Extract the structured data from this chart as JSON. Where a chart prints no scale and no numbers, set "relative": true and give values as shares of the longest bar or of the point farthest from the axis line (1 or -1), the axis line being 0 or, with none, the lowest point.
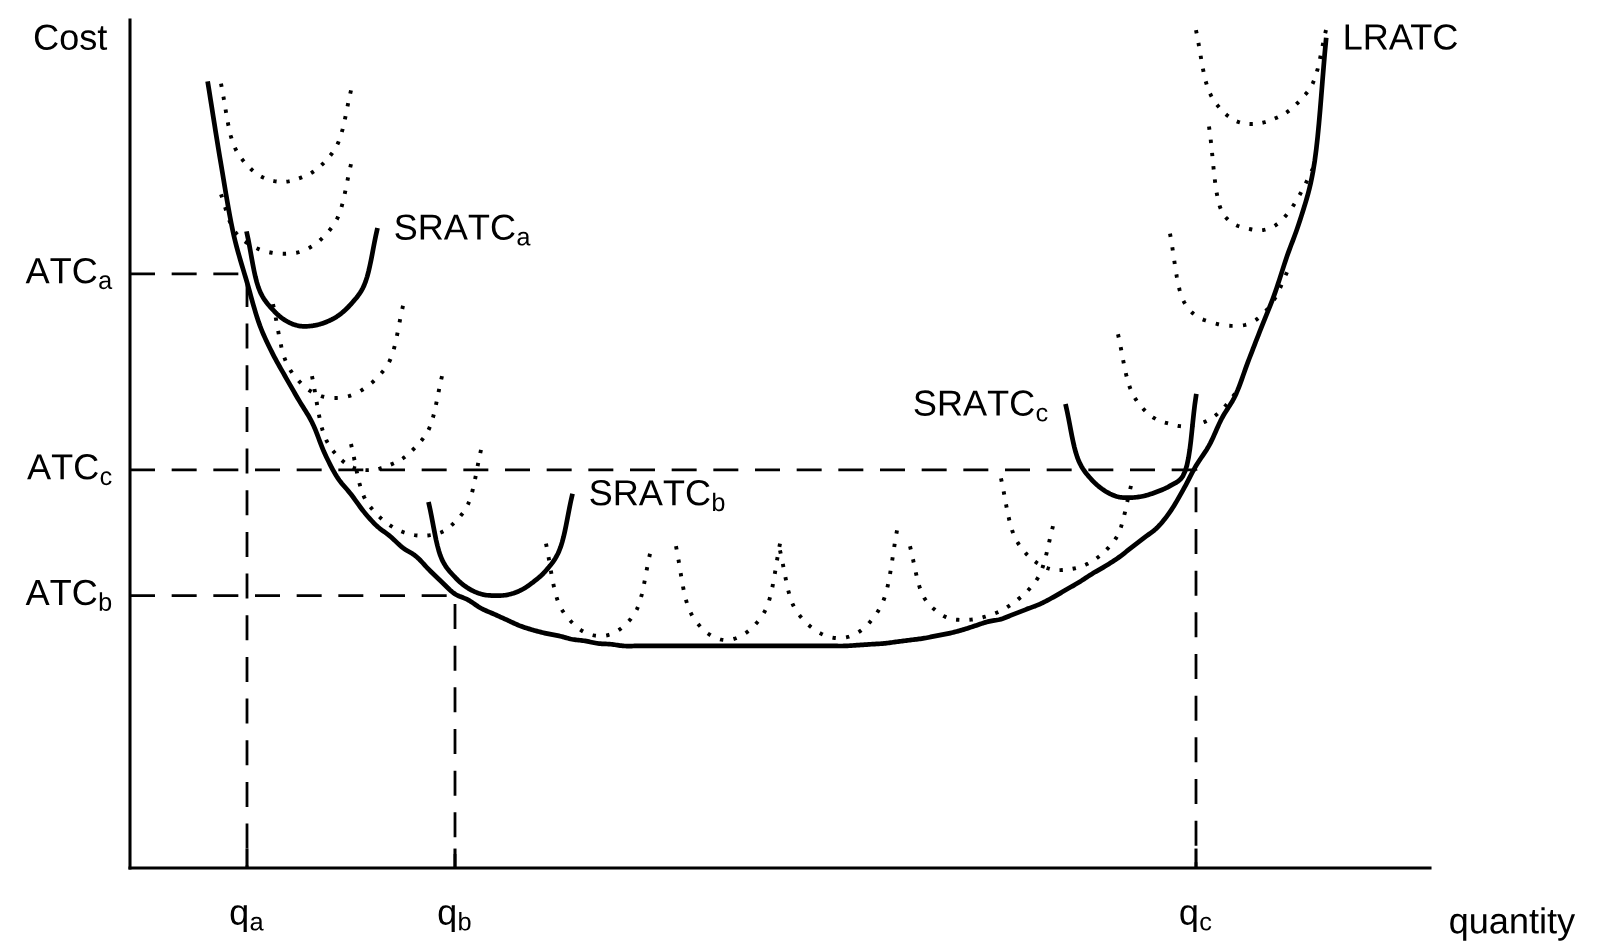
{
  "chart_data": {
    "type": "line",
    "relative": true,
    "xlabel": "quantity",
    "ylabel": "Cost",
    "categories": [
      null,
      null,
      null,
      null,
      null,
      null,
      null,
      null,
      null,
      "q$_{a}$",
      null,
      null,
      null,
      null,
      null,
      null,
      null,
      null,
      null,
      null,
      null,
      null,
      null,
      null,
      null,
      "q$_{b}$",
      null,
      null,
      null,
      null,
      null,
      null,
      null,
      null,
      null,
      null,
      null,
      null,
      null,
      null,
      null,
      null,
      null,
      null,
      null,
      null,
      null,
      null,
      null,
      null,
      null,
      null,
      null,
      null,
      null,
      null,
      null,
      null,
      null,
      null,
      null,
      null,
      null,
      null,
      null,
      null,
      null,
      null,
      null,
      null,
      null,
      null,
      null,
      null,
      null,
      null,
      null,
      null,
      null,
      null,
      null,
      null,
      "q$_{c}$",
      null,
      null,
      null,
      null,
      null,
      null,
      null,
      null,
      null,
      null,
      null,
      null,
      null,
      null,
      null,
      null,
      null,
      null
    ],
    "series": [
      {
        "name": "LRATC",
        "color": "#000000",
        "line_style": "solid",
        "values": [
          null,
          null,
          null,
          null,
          null,
          null,
          0.936,
          0.84,
          0.754,
          0.699,
          0.647,
          0.613,
          0.585,
          0.558,
          0.532,
          0.494,
          0.465,
          0.446,
          0.425,
          0.408,
          0.396,
          0.382,
          0.372,
          0.356,
          0.341,
          0.327,
          0.32,
          0.31,
          0.303,
          0.296,
          0.289,
          0.284,
          0.28,
          0.277,
          0.273,
          0.271,
          0.268,
          0.267,
          0.265,
          0.265,
          0.265,
          0.265,
          0.265,
          0.265,
          0.265,
          0.265,
          0.265,
          0.265,
          0.265,
          0.265,
          0.265,
          0.265,
          0.265,
          0.265,
          0.265,
          0.265,
          0.266,
          0.267,
          0.268,
          0.27,
          0.272,
          0.274,
          0.277,
          0.28,
          0.284,
          0.289,
          0.294,
          0.297,
          0.303,
          0.309,
          0.315,
          0.323,
          0.332,
          0.341,
          0.351,
          0.36,
          0.37,
          0.382,
          0.394,
          0.406,
          0.425,
          0.451,
          0.48,
          0.504,
          0.537,
          0.563,
          0.604,
          0.644,
          0.683,
          0.73,
          0.773,
          0.831,
          0.988,
          null,
          null,
          null,
          null,
          null,
          null,
          null,
          null
        ]
      },
      {
        "name": "SRATC$_{a}$",
        "color": "#000000",
        "line_style": "solid",
        "values": [
          null,
          null,
          null,
          null,
          null,
          null,
          null,
          null,
          null,
          0.757,
          0.688,
          0.666,
          0.653,
          0.647,
          0.647,
          0.651,
          0.659,
          0.673,
          0.695,
          0.761,
          null,
          null,
          null,
          null,
          null,
          null,
          null,
          null,
          null,
          null,
          null,
          null,
          null,
          null,
          null,
          null,
          null,
          null,
          null,
          null,
          null,
          null,
          null,
          null,
          null,
          null,
          null,
          null,
          null,
          null,
          null,
          null,
          null,
          null,
          null,
          null,
          null,
          null,
          null,
          null,
          null,
          null,
          null,
          null,
          null,
          null,
          null,
          null,
          null,
          null,
          null,
          null,
          null,
          null,
          null,
          null,
          null,
          null,
          null,
          null,
          null,
          null,
          null,
          null,
          null,
          null,
          null,
          null,
          null,
          null,
          null,
          null,
          null,
          null,
          null,
          null,
          null,
          null,
          null,
          null,
          null
        ]
      },
      {
        "name": "SRATC$_{b}$",
        "color": "#000000",
        "line_style": "solid",
        "values": [
          null,
          null,
          null,
          null,
          null,
          null,
          null,
          null,
          null,
          null,
          null,
          null,
          null,
          null,
          null,
          null,
          null,
          null,
          null,
          null,
          null,
          null,
          null,
          0.434,
          0.368,
          0.347,
          0.334,
          0.327,
          0.325,
          0.326,
          0.331,
          0.341,
          0.355,
          0.378,
          0.444,
          null,
          null,
          null,
          null,
          null,
          null,
          null,
          null,
          null,
          null,
          null,
          null,
          null,
          null,
          null,
          null,
          null,
          null,
          null,
          null,
          null,
          null,
          null,
          null,
          null,
          null,
          null,
          null,
          null,
          null,
          null,
          null,
          null,
          null,
          null,
          null,
          null,
          null,
          null,
          null,
          null,
          null,
          null,
          null,
          null,
          null,
          null,
          null,
          null,
          null,
          null,
          null,
          null,
          null,
          null,
          null,
          null,
          null,
          null,
          null,
          null,
          null,
          null,
          null,
          null,
          null
        ]
      },
      {
        "name": "SRATC$_{c}$",
        "color": "#000000",
        "line_style": "solid",
        "values": [
          null,
          null,
          null,
          null,
          null,
          null,
          null,
          null,
          null,
          null,
          null,
          null,
          null,
          null,
          null,
          null,
          null,
          null,
          null,
          null,
          null,
          null,
          null,
          null,
          null,
          null,
          null,
          null,
          null,
          null,
          null,
          null,
          null,
          null,
          null,
          null,
          null,
          null,
          null,
          null,
          null,
          null,
          null,
          null,
          null,
          null,
          null,
          null,
          null,
          null,
          null,
          null,
          null,
          null,
          null,
          null,
          null,
          null,
          null,
          null,
          null,
          null,
          null,
          null,
          null,
          null,
          null,
          null,
          null,
          null,
          null,
          null,
          0.551,
          0.485,
          0.463,
          0.45,
          0.443,
          0.442,
          0.444,
          0.449,
          0.456,
          0.468,
          0.563,
          null,
          null,
          null,
          null,
          null,
          null,
          null,
          null,
          null,
          null,
          null,
          null,
          null,
          null,
          null,
          null,
          null,
          null
        ]
      },
      {
        "color": "#000000",
        "line_style": "dotted",
        "values": [
          null,
          null,
          null,
          null,
          null,
          null,
          null,
          0.936,
          0.862,
          0.839,
          0.826,
          0.82,
          0.819,
          0.823,
          0.83,
          0.843,
          0.865,
          0.928,
          null,
          null,
          null,
          null,
          null,
          null,
          null,
          null,
          null,
          null,
          null,
          null,
          null,
          null,
          null,
          null,
          null,
          null,
          null,
          null,
          null,
          null,
          null,
          null,
          null,
          null,
          null,
          null,
          null,
          null,
          null,
          null,
          null,
          null,
          null,
          null,
          null,
          null,
          null,
          null,
          null,
          null,
          null,
          null,
          null,
          null,
          null,
          null,
          null,
          null,
          null,
          null,
          null,
          null,
          null,
          null,
          null,
          null,
          null,
          null,
          null,
          null,
          null,
          null,
          null,
          null,
          null,
          null,
          null,
          null,
          null,
          null,
          null,
          null,
          null,
          null,
          null,
          null,
          null,
          null,
          null,
          null,
          null
        ]
      },
      {
        "color": "#000000",
        "line_style": "dotted",
        "values": [
          null,
          null,
          null,
          null,
          null,
          null,
          null,
          0.804,
          0.761,
          0.746,
          0.738,
          0.734,
          0.733,
          0.735,
          0.742,
          0.755,
          0.777,
          0.84,
          null,
          null,
          null,
          null,
          null,
          null,
          null,
          null,
          null,
          null,
          null,
          null,
          null,
          null,
          null,
          null,
          null,
          null,
          null,
          null,
          null,
          null,
          null,
          null,
          null,
          null,
          null,
          null,
          null,
          null,
          null,
          null,
          null,
          null,
          null,
          null,
          null,
          null,
          null,
          null,
          null,
          null,
          null,
          null,
          null,
          null,
          null,
          null,
          null,
          null,
          null,
          null,
          null,
          null,
          null,
          null,
          null,
          null,
          null,
          null,
          null,
          null,
          null,
          null,
          null,
          null,
          null,
          null,
          null,
          null,
          null,
          null,
          null,
          null,
          null,
          null,
          null,
          null,
          null,
          null,
          null,
          null,
          null
        ]
      },
      {
        "color": "#000000",
        "line_style": "dotted",
        "values": [
          null,
          null,
          null,
          null,
          null,
          null,
          null,
          null,
          null,
          null,
          null,
          0.673,
          0.604,
          0.581,
          0.568,
          0.562,
          0.561,
          0.564,
          0.572,
          0.585,
          0.606,
          0.671,
          null,
          null,
          null,
          null,
          null,
          null,
          null,
          null,
          null,
          null,
          null,
          null,
          null,
          null,
          null,
          null,
          null,
          null,
          null,
          null,
          null,
          null,
          null,
          null,
          null,
          null,
          null,
          null,
          null,
          null,
          null,
          null,
          null,
          null,
          null,
          null,
          null,
          null,
          null,
          null,
          null,
          null,
          null,
          null,
          null,
          null,
          null,
          null,
          null,
          null,
          null,
          null,
          null,
          null,
          null,
          null,
          null,
          null,
          null,
          null,
          null,
          null,
          null,
          null,
          null,
          null,
          null,
          null,
          null,
          null,
          null,
          null,
          null,
          null,
          null,
          null,
          null,
          null,
          null
        ]
      },
      {
        "color": "#000000",
        "line_style": "dotted",
        "values": [
          null,
          null,
          null,
          null,
          null,
          null,
          null,
          null,
          null,
          null,
          null,
          null,
          null,
          null,
          0.587,
          0.514,
          0.491,
          0.479,
          0.475,
          0.476,
          0.481,
          0.489,
          0.503,
          0.524,
          0.587,
          null,
          null,
          null,
          null,
          null,
          null,
          null,
          null,
          null,
          null,
          null,
          null,
          null,
          null,
          null,
          null,
          null,
          null,
          null,
          null,
          null,
          null,
          null,
          null,
          null,
          null,
          null,
          null,
          null,
          null,
          null,
          null,
          null,
          null,
          null,
          null,
          null,
          null,
          null,
          null,
          null,
          null,
          null,
          null,
          null,
          null,
          null,
          null,
          null,
          null,
          null,
          null,
          null,
          null,
          null,
          null,
          null,
          null,
          null,
          null,
          null,
          null,
          null,
          null,
          null,
          null,
          null,
          null,
          null,
          null,
          null,
          null,
          null,
          null,
          null,
          null
        ]
      },
      {
        "color": "#000000",
        "line_style": "dotted",
        "values": [
          null,
          null,
          null,
          null,
          null,
          null,
          null,
          null,
          null,
          null,
          null,
          null,
          null,
          null,
          null,
          null,
          null,
          0.506,
          0.443,
          0.422,
          0.409,
          0.401,
          0.397,
          0.397,
          0.401,
          0.413,
          0.434,
          0.499,
          null,
          null,
          null,
          null,
          null,
          null,
          null,
          null,
          null,
          null,
          null,
          null,
          null,
          null,
          null,
          null,
          null,
          null,
          null,
          null,
          null,
          null,
          null,
          null,
          null,
          null,
          null,
          null,
          null,
          null,
          null,
          null,
          null,
          null,
          null,
          null,
          null,
          null,
          null,
          null,
          null,
          null,
          null,
          null,
          null,
          null,
          null,
          null,
          null,
          null,
          null,
          null,
          null,
          null,
          null,
          null,
          null,
          null,
          null,
          null,
          null,
          null,
          null,
          null,
          null,
          null,
          null,
          null,
          null,
          null,
          null,
          null,
          null
        ]
      },
      {
        "color": "#000000",
        "line_style": "dotted",
        "values": [
          null,
          null,
          null,
          null,
          null,
          null,
          null,
          null,
          null,
          null,
          null,
          null,
          null,
          null,
          null,
          null,
          null,
          null,
          null,
          null,
          null,
          null,
          null,
          null,
          null,
          null,
          null,
          null,
          null,
          null,
          null,
          null,
          0.387,
          0.315,
          0.293,
          0.281,
          0.277,
          0.279,
          0.289,
          0.309,
          0.375,
          null,
          null,
          null,
          null,
          null,
          null,
          null,
          null,
          null,
          null,
          null,
          null,
          null,
          null,
          null,
          null,
          null,
          null,
          null,
          null,
          null,
          null,
          null,
          null,
          null,
          null,
          null,
          null,
          null,
          null,
          null,
          null,
          null,
          null,
          null,
          null,
          null,
          null,
          null,
          null,
          null,
          null,
          null,
          null,
          null,
          null,
          null,
          null,
          null,
          null,
          null,
          null,
          null,
          null,
          null,
          null,
          null,
          null,
          null,
          null
        ]
      },
      {
        "color": "#000000",
        "line_style": "dotted",
        "values": [
          null,
          null,
          null,
          null,
          null,
          null,
          null,
          null,
          null,
          null,
          null,
          null,
          null,
          null,
          null,
          null,
          null,
          null,
          null,
          null,
          null,
          null,
          null,
          null,
          null,
          null,
          null,
          null,
          null,
          null,
          null,
          null,
          null,
          null,
          null,
          null,
          null,
          null,
          null,
          null,
          null,
          null,
          0.384,
          0.309,
          0.286,
          0.275,
          0.272,
          0.277,
          0.289,
          0.312,
          0.387,
          null,
          null,
          null,
          null,
          null,
          null,
          null,
          null,
          null,
          null,
          null,
          null,
          null,
          null,
          null,
          null,
          null,
          null,
          null,
          null,
          null,
          null,
          null,
          null,
          null,
          null,
          null,
          null,
          null,
          null,
          null,
          null,
          null,
          null,
          null,
          null,
          null,
          null,
          null,
          null,
          null,
          null,
          null,
          null,
          null,
          null,
          null,
          null,
          null,
          null
        ]
      },
      {
        "color": "#000000",
        "line_style": "dotted",
        "values": [
          null,
          null,
          null,
          null,
          null,
          null,
          null,
          null,
          null,
          null,
          null,
          null,
          null,
          null,
          null,
          null,
          null,
          null,
          null,
          null,
          null,
          null,
          null,
          null,
          null,
          null,
          null,
          null,
          null,
          null,
          null,
          null,
          null,
          null,
          null,
          null,
          null,
          null,
          null,
          null,
          null,
          null,
          null,
          null,
          null,
          null,
          null,
          null,
          null,
          null,
          0.379,
          0.314,
          0.293,
          0.281,
          0.275,
          0.275,
          0.281,
          0.295,
          0.321,
          0.403,
          null,
          null,
          null,
          null,
          null,
          null,
          null,
          null,
          null,
          null,
          null,
          null,
          null,
          null,
          null,
          null,
          null,
          null,
          null,
          null,
          null,
          null,
          null,
          null,
          null,
          null,
          null,
          null,
          null,
          null,
          null,
          null,
          null,
          null,
          null,
          null,
          null,
          null,
          null,
          null,
          null
        ]
      },
      {
        "color": "#000000",
        "line_style": "dotted",
        "values": [
          null,
          null,
          null,
          null,
          null,
          null,
          null,
          null,
          null,
          null,
          null,
          null,
          null,
          null,
          null,
          null,
          null,
          null,
          null,
          null,
          null,
          null,
          null,
          null,
          null,
          null,
          null,
          null,
          null,
          null,
          null,
          null,
          null,
          null,
          null,
          null,
          null,
          null,
          null,
          null,
          null,
          null,
          null,
          null,
          null,
          null,
          null,
          null,
          null,
          null,
          null,
          null,
          null,
          null,
          null,
          null,
          null,
          null,
          null,
          null,
          0.384,
          0.325,
          0.307,
          0.298,
          0.296,
          0.297,
          0.301,
          0.307,
          0.317,
          0.33,
          0.351,
          0.408,
          null,
          null,
          null,
          null,
          null,
          null,
          null,
          null,
          null,
          null,
          null,
          null,
          null,
          null,
          null,
          null,
          null,
          null,
          null,
          null,
          null,
          null,
          null,
          null,
          null,
          null,
          null,
          null,
          null
        ]
      },
      {
        "color": "#000000",
        "line_style": "dotted",
        "values": [
          null,
          null,
          null,
          null,
          null,
          null,
          null,
          null,
          null,
          null,
          null,
          null,
          null,
          null,
          null,
          null,
          null,
          null,
          null,
          null,
          null,
          null,
          null,
          null,
          null,
          null,
          null,
          null,
          null,
          null,
          null,
          null,
          null,
          null,
          null,
          null,
          null,
          null,
          null,
          null,
          null,
          null,
          null,
          null,
          null,
          null,
          null,
          null,
          null,
          null,
          null,
          null,
          null,
          null,
          null,
          null,
          null,
          null,
          null,
          null,
          null,
          null,
          null,
          null,
          null,
          null,
          null,
          0.465,
          0.397,
          0.374,
          0.362,
          0.356,
          0.356,
          0.359,
          0.366,
          0.378,
          0.398,
          0.456,
          null,
          null,
          null,
          null,
          null,
          null,
          null,
          null,
          null,
          null,
          null,
          null,
          null,
          null,
          null,
          null,
          null,
          null,
          null,
          null,
          null,
          null,
          null
        ]
      },
      {
        "color": "#000000",
        "line_style": "dotted",
        "values": [
          null,
          null,
          null,
          null,
          null,
          null,
          null,
          null,
          null,
          null,
          null,
          null,
          null,
          null,
          null,
          null,
          null,
          null,
          null,
          null,
          null,
          null,
          null,
          null,
          null,
          null,
          null,
          null,
          null,
          null,
          null,
          null,
          null,
          null,
          null,
          null,
          null,
          null,
          null,
          null,
          null,
          null,
          null,
          null,
          null,
          null,
          null,
          null,
          null,
          null,
          null,
          null,
          null,
          null,
          null,
          null,
          null,
          null,
          null,
          null,
          null,
          null,
          null,
          null,
          null,
          null,
          null,
          null,
          null,
          null,
          null,
          null,
          null,
          null,
          null,
          null,
          0.637,
          0.57,
          0.547,
          0.535,
          0.53,
          0.527,
          0.529,
          0.535,
          0.547,
          0.566,
          null,
          null,
          null,
          null,
          null,
          null,
          null,
          null,
          null,
          null,
          null,
          null,
          null,
          null,
          null
        ]
      },
      {
        "color": "#000000",
        "line_style": "dotted",
        "values": [
          null,
          null,
          null,
          null,
          null,
          null,
          null,
          null,
          null,
          null,
          null,
          null,
          null,
          null,
          null,
          null,
          null,
          null,
          null,
          null,
          null,
          null,
          null,
          null,
          null,
          null,
          null,
          null,
          null,
          null,
          null,
          null,
          null,
          null,
          null,
          null,
          null,
          null,
          null,
          null,
          null,
          null,
          null,
          null,
          null,
          null,
          null,
          null,
          null,
          null,
          null,
          null,
          null,
          null,
          null,
          null,
          null,
          null,
          null,
          null,
          null,
          null,
          null,
          null,
          null,
          null,
          null,
          null,
          null,
          null,
          null,
          null,
          null,
          null,
          null,
          null,
          null,
          null,
          null,
          null,
          0.757,
          0.678,
          0.659,
          0.652,
          0.648,
          0.647,
          0.649,
          0.659,
          0.678,
          0.711,
          null,
          null,
          null,
          null,
          null,
          null,
          null,
          null,
          null,
          null,
          null
        ]
      },
      {
        "color": "#000000",
        "line_style": "dotted",
        "values": [
          null,
          null,
          null,
          null,
          null,
          null,
          null,
          null,
          null,
          null,
          null,
          null,
          null,
          null,
          null,
          null,
          null,
          null,
          null,
          null,
          null,
          null,
          null,
          null,
          null,
          null,
          null,
          null,
          null,
          null,
          null,
          null,
          null,
          null,
          null,
          null,
          null,
          null,
          null,
          null,
          null,
          null,
          null,
          null,
          null,
          null,
          null,
          null,
          null,
          null,
          null,
          null,
          null,
          null,
          null,
          null,
          null,
          null,
          null,
          null,
          null,
          null,
          null,
          null,
          null,
          null,
          null,
          null,
          null,
          null,
          null,
          null,
          null,
          null,
          null,
          null,
          null,
          null,
          null,
          null,
          null,
          null,
          null,
          0.885,
          0.783,
          0.768,
          0.763,
          0.761,
          0.766,
          0.78,
          0.804,
          0.835,
          null,
          null,
          null,
          null,
          null,
          null,
          null,
          null,
          null
        ]
      },
      {
        "color": "#000000",
        "line_style": "dotted",
        "values": [
          null,
          null,
          null,
          null,
          null,
          null,
          null,
          null,
          null,
          null,
          null,
          null,
          null,
          null,
          null,
          null,
          null,
          null,
          null,
          null,
          null,
          null,
          null,
          null,
          null,
          null,
          null,
          null,
          null,
          null,
          null,
          null,
          null,
          null,
          null,
          null,
          null,
          null,
          null,
          null,
          null,
          null,
          null,
          null,
          null,
          null,
          null,
          null,
          null,
          null,
          null,
          null,
          null,
          null,
          null,
          null,
          null,
          null,
          null,
          null,
          null,
          null,
          null,
          null,
          null,
          null,
          null,
          null,
          null,
          null,
          null,
          null,
          null,
          null,
          null,
          null,
          null,
          null,
          null,
          null,
          null,
          null,
          1.0,
          0.927,
          0.904,
          0.892,
          0.888,
          0.889,
          0.894,
          0.902,
          0.916,
          0.937,
          1.0,
          null,
          null,
          null,
          null,
          null,
          null,
          null,
          null
        ]
      },
      {
        "name": "ATC$_{a}$",
        "type": "step",
        "color": "#000000",
        "line_style": "dashed",
        "values": [
          0.709,
          0.709,
          0.709,
          0.709,
          0.709,
          0.709,
          0.709,
          0.709,
          0.709,
          0,
          null,
          null,
          null,
          null,
          null,
          null,
          null,
          null,
          null,
          null,
          null,
          null,
          null,
          null,
          null,
          null,
          null,
          null,
          null,
          null,
          null,
          null,
          null,
          null,
          null,
          null,
          null,
          null,
          null,
          null,
          null,
          null,
          null,
          null,
          null,
          null,
          null,
          null,
          null,
          null,
          null,
          null,
          null,
          null,
          null,
          null,
          null,
          null,
          null,
          null,
          null,
          null,
          null,
          null,
          null,
          null,
          null,
          null,
          null,
          null,
          null,
          null,
          null,
          null,
          null,
          null,
          null,
          null,
          null,
          null,
          null,
          null,
          null,
          null,
          null,
          null,
          null,
          null,
          null,
          null,
          null,
          null,
          null,
          null,
          null,
          null,
          null,
          null,
          null,
          null,
          null
        ]
      },
      {
        "name": "ATC$_{b}$",
        "type": "step",
        "color": "#000000",
        "line_style": "dashed",
        "values": [
          0.325,
          0.325,
          0.325,
          0.325,
          0.325,
          0.325,
          0.325,
          0.325,
          0.325,
          0.325,
          0.325,
          0.325,
          0.325,
          0.325,
          0.325,
          0.325,
          0.325,
          0.325,
          0.325,
          0.325,
          0.325,
          0.325,
          0.325,
          0.325,
          0.325,
          0,
          null,
          null,
          null,
          null,
          null,
          null,
          null,
          null,
          null,
          null,
          null,
          null,
          null,
          null,
          null,
          null,
          null,
          null,
          null,
          null,
          null,
          null,
          null,
          null,
          null,
          null,
          null,
          null,
          null,
          null,
          null,
          null,
          null,
          null,
          null,
          null,
          null,
          null,
          null,
          null,
          null,
          null,
          null,
          null,
          null,
          null,
          null,
          null,
          null,
          null,
          null,
          null,
          null,
          null,
          null,
          null,
          null,
          null,
          null,
          null,
          null,
          null,
          null,
          null,
          null,
          null,
          null,
          null,
          null,
          null,
          null,
          null,
          null,
          null,
          null
        ]
      },
      {
        "name": "ATC$_{c}$",
        "type": "step",
        "color": "#000000",
        "line_style": "dashed",
        "values": [
          0.475,
          0.475,
          0.475,
          0.475,
          0.475,
          0.475,
          0.475,
          0.475,
          0.475,
          0.475,
          0.475,
          0.475,
          0.475,
          0.475,
          0.475,
          0.475,
          0.475,
          0.475,
          0.475,
          0.475,
          0.475,
          0.475,
          0.475,
          0.475,
          0.475,
          0.475,
          0.475,
          0.475,
          0.475,
          0.475,
          0.475,
          0.475,
          0.475,
          0.475,
          0.475,
          0.475,
          0.475,
          0.475,
          0.475,
          0.475,
          0.475,
          0.475,
          0.475,
          0.475,
          0.475,
          0.475,
          0.475,
          0.475,
          0.475,
          0.475,
          0.475,
          0.475,
          0.475,
          0.475,
          0.475,
          0.475,
          0.475,
          0.475,
          0.475,
          0.475,
          0.475,
          0.475,
          0.475,
          0.475,
          0.475,
          0.475,
          0.475,
          0.475,
          0.475,
          0.475,
          0.475,
          0.475,
          0.475,
          0.475,
          0.475,
          0.475,
          0.475,
          0.475,
          0.475,
          0.475,
          0.475,
          0.475,
          0,
          null,
          null,
          null,
          null,
          null,
          null,
          null,
          null,
          null,
          null,
          null,
          null,
          null,
          null,
          null,
          null,
          null,
          null
        ]
      }
    ]
  }
}
